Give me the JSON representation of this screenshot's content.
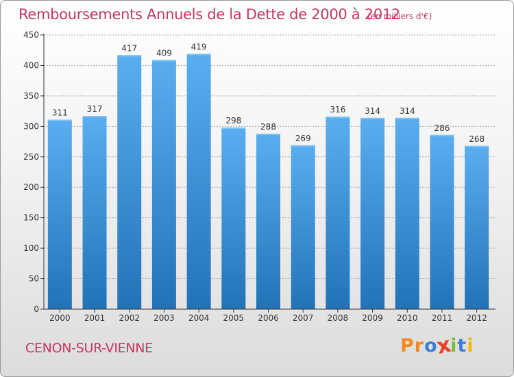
{
  "title": "Remboursements Annuels de la Dette de 2000 à 2012",
  "subtitle": "(en milliers d'€)",
  "commune": "CENON-SUR-VIENNE",
  "logo": {
    "text": "Proxiti",
    "letter_colors": [
      "#f08a24",
      "#f08a24",
      "#3a7fd5",
      "#e8412c",
      "#7cbf2e",
      "#3a7fd5",
      "#f5b800"
    ]
  },
  "colors": {
    "title": "#c8365f",
    "bar_top": "#5aaef0",
    "bar_bottom": "#2272b7",
    "axis": "#333333",
    "grid": "#aaaaaa"
  },
  "chart_data": {
    "type": "bar",
    "title": "Remboursements Annuels de la Dette de 2000 à 2012",
    "subtitle": "(en milliers d'€)",
    "categories": [
      "2000",
      "2001",
      "2002",
      "2003",
      "2004",
      "2005",
      "2006",
      "2007",
      "2008",
      "2009",
      "2010",
      "2011",
      "2012"
    ],
    "values": [
      311,
      317,
      417,
      409,
      419,
      298,
      288,
      269,
      316,
      314,
      314,
      286,
      268
    ],
    "value_labels": [
      "311",
      "317",
      "417",
      "409",
      "419",
      "298",
      "288",
      "269",
      "316",
      "314",
      "314",
      "286",
      "268"
    ],
    "xlabel": "",
    "ylabel": "",
    "ylim": [
      0,
      450
    ],
    "yticks": [
      0,
      50,
      100,
      150,
      200,
      250,
      300,
      350,
      400,
      450
    ],
    "ytick_labels": [
      "0",
      "50",
      "100",
      "150",
      "200",
      "250",
      "300",
      "350",
      "400",
      "450"
    ],
    "grid": true,
    "legend": "none"
  }
}
